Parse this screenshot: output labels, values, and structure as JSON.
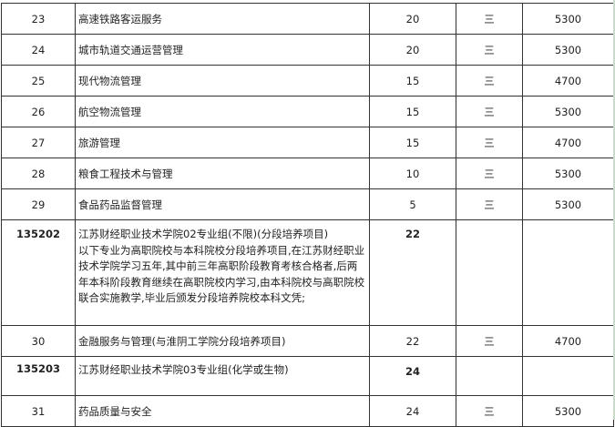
{
  "rows": [
    {
      "no": "23",
      "name": "高速铁路客运服务",
      "plan": "20",
      "years": "三",
      "fee": "5300"
    },
    {
      "no": "24",
      "name": "城市轨道交通运营管理",
      "plan": "20",
      "years": "三",
      "fee": "5300"
    },
    {
      "no": "25",
      "name": "现代物流管理",
      "plan": "15",
      "years": "三",
      "fee": "4700"
    },
    {
      "no": "26",
      "name": "航空物流管理",
      "plan": "15",
      "years": "三",
      "fee": "5300"
    },
    {
      "no": "27",
      "name": "旅游管理",
      "plan": "15",
      "years": "三",
      "fee": "4700"
    },
    {
      "no": "28",
      "name": "粮食工程技术与管理",
      "plan": "10",
      "years": "三",
      "fee": "5300"
    },
    {
      "no": "29",
      "name": "食品药品监督管理",
      "plan": "5",
      "years": "三",
      "fee": "5300"
    }
  ],
  "group1": {
    "code": "135202",
    "title": "江苏财经职业技术学院02专业组(不限)(分段培养项目)",
    "note": "以下专业为高职院校与本科院校分段培养项目,在江苏财经职业技术学院学习五年,其中前三年高职阶段教育考核合格者,后两年本科阶段教育继续在高职院校内学习,由本科院校与高职院校联合实施教学,毕业后颁发分段培养院校本科文凭;",
    "plan": "22"
  },
  "row30": {
    "no": "30",
    "name": "金融服务与管理(与淮阴工学院分段培养项目)",
    "plan": "22",
    "years": "三",
    "fee": "4700"
  },
  "group2": {
    "code": "135203",
    "title": "江苏财经职业技术学院03专业组(化学或生物)",
    "plan": "24"
  },
  "row31": {
    "no": "31",
    "name": "药品质量与安全",
    "plan": "24",
    "years": "三",
    "fee": "5300"
  }
}
